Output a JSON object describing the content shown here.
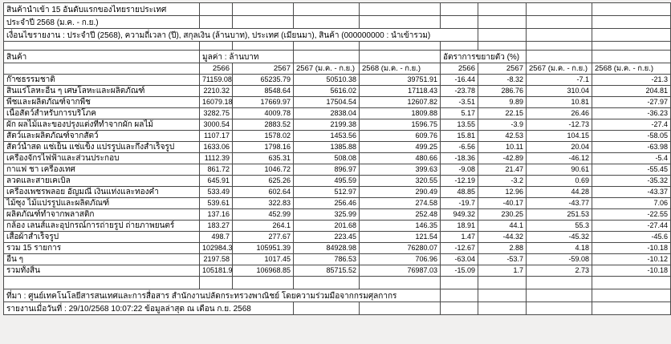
{
  "colors": {
    "background": "#f1f0ef",
    "grid": "#4a4a4a",
    "cell_background": "#ffffff",
    "text": "#000000"
  },
  "report": {
    "title": "สินค้านำเข้า 15 อันดับแรกของไทยรายประเทศ",
    "period": "ประจำปี 2568 (ม.ค. - ก.ย.)",
    "conditions": "เงื่อนไขรายงาน : ประจำปี (2568), ความถี่เวลา (ปี), สกุลเงิน (ล้านบาท), ประเทศ (เมียนมา), สินค้า (000000000 : นำเข้ารวม)",
    "source": "ที่มา : ศูนย์เทคโนโลยีสารสนเทศและการสื่อสาร สำนักงานปลัดกระทรวงพาณิชย์ โดยความร่วมมือจากกรมศุลกากร",
    "generated": "รายงานเมื่อวันที่ : 29/10/2568 10:07:22 ข้อมูลล่าสุด ณ เดือน ก.ย. 2568"
  },
  "table": {
    "product_header": "สินค้า",
    "value_group_header": "มูลค่า : ล้านบาท",
    "growth_group_header": "อัตราการขยายตัว (%)",
    "year_headers": [
      "2566",
      "2567",
      "2567 (ม.ค. - ก.ย.)",
      "2568 (ม.ค. - ก.ย.)",
      "2566",
      "2567",
      "2567 (ม.ค. - ก.ย.)",
      "2568 (ม.ค. - ก.ย.)"
    ],
    "rows": [
      {
        "product": "ก๊าซธรรมชาติ",
        "values": [
          "71159.08",
          "65235.79",
          "50510.38",
          "39751.91",
          "-16.44",
          "-8.32",
          "-7.1",
          "-21.3"
        ]
      },
      {
        "product": "สินแร่โลหะอื่น ๆ เศษโลหะและผลิตภัณฑ์",
        "values": [
          "2210.32",
          "8548.64",
          "5616.02",
          "17118.43",
          "-23.78",
          "286.76",
          "310.04",
          "204.81"
        ]
      },
      {
        "product": "พืชและผลิตภัณฑ์จากพืช",
        "values": [
          "16079.18",
          "17669.97",
          "17504.54",
          "12607.82",
          "-3.51",
          "9.89",
          "10.81",
          "-27.97"
        ]
      },
      {
        "product": "เนื้อสัตว์สำหรับการบริโภค",
        "values": [
          "3282.75",
          "4009.78",
          "2838.04",
          "1809.88",
          "5.17",
          "22.15",
          "26.46",
          "-36.23"
        ]
      },
      {
        "product": "ผัก ผลไม้และของปรุงแต่งที่ทำจากผัก ผลไม้",
        "values": [
          "3000.54",
          "2883.52",
          "2199.38",
          "1596.75",
          "13.55",
          "-3.9",
          "-12.73",
          "-27.4"
        ]
      },
      {
        "product": "สัตว์และผลิตภัณฑ์จากสัตว์",
        "values": [
          "1107.17",
          "1578.02",
          "1453.56",
          "609.76",
          "15.81",
          "42.53",
          "104.15",
          "-58.05"
        ]
      },
      {
        "product": "สัตว์น้ำสด แช่เย็น แช่แข็ง แปรรูปและกึ่งสำเร็จรูป",
        "values": [
          "1633.06",
          "1798.16",
          "1385.88",
          "499.25",
          "-6.56",
          "10.11",
          "20.04",
          "-63.98"
        ]
      },
      {
        "product": "เครื่องจักรไฟฟ้าและส่วนประกอบ",
        "values": [
          "1112.39",
          "635.31",
          "508.08",
          "480.66",
          "-18.36",
          "-42.89",
          "-46.12",
          "-5.4"
        ]
      },
      {
        "product": "กาแฟ ชา เครื่องเทศ",
        "values": [
          "861.72",
          "1046.72",
          "896.97",
          "399.63",
          "-9.08",
          "21.47",
          "90.61",
          "-55.45"
        ]
      },
      {
        "product": "ลวดและสายเคเบิล",
        "values": [
          "645.91",
          "625.26",
          "495.59",
          "320.55",
          "-12.19",
          "-3.2",
          "0.69",
          "-35.32"
        ]
      },
      {
        "product": "เครื่องเพชรพลอย อัญมณี เงินแท่งและทองคำ",
        "values": [
          "533.49",
          "602.64",
          "512.97",
          "290.49",
          "48.85",
          "12.96",
          "44.28",
          "-43.37"
        ]
      },
      {
        "product": "ไม้ซุง ไม้แปรรูปและผลิตภัณฑ์",
        "values": [
          "539.61",
          "322.83",
          "256.46",
          "274.58",
          "-19.7",
          "-40.17",
          "-43.77",
          "7.06"
        ]
      },
      {
        "product": "ผลิตภัณฑ์ทำจากพลาสติก",
        "values": [
          "137.16",
          "452.99",
          "325.99",
          "252.48",
          "949.32",
          "230.25",
          "251.53",
          "-22.55"
        ]
      },
      {
        "product": "กล้อง  เลนส์และอุปกรณ์การถ่ายรูป ถ่ายภาพยนตร์",
        "values": [
          "183.27",
          "264.1",
          "201.68",
          "146.35",
          "18.91",
          "44.1",
          "55.3",
          "-27.44"
        ]
      },
      {
        "product": "เสื้อผ้าสำเร็จรูป",
        "values": [
          "498.7",
          "277.67",
          "223.45",
          "121.54",
          "1.47",
          "-44.32",
          "-45.32",
          "-45.6"
        ]
      },
      {
        "product": "รวม 15 รายการ",
        "values": [
          "102984.3",
          "105951.39",
          "84928.98",
          "76280.07",
          "-12.67",
          "2.88",
          "4.18",
          "-10.18"
        ]
      },
      {
        "product": "อื่น ๆ",
        "values": [
          "2197.58",
          "1017.45",
          "786.53",
          "706.96",
          "-63.04",
          "-53.7",
          "-59.08",
          "-10.12"
        ]
      },
      {
        "product": "รวมทั้งสิ้น",
        "values": [
          "105181.9",
          "106968.85",
          "85715.52",
          "76987.03",
          "-15.09",
          "1.7",
          "2.73",
          "-10.18"
        ]
      }
    ]
  }
}
